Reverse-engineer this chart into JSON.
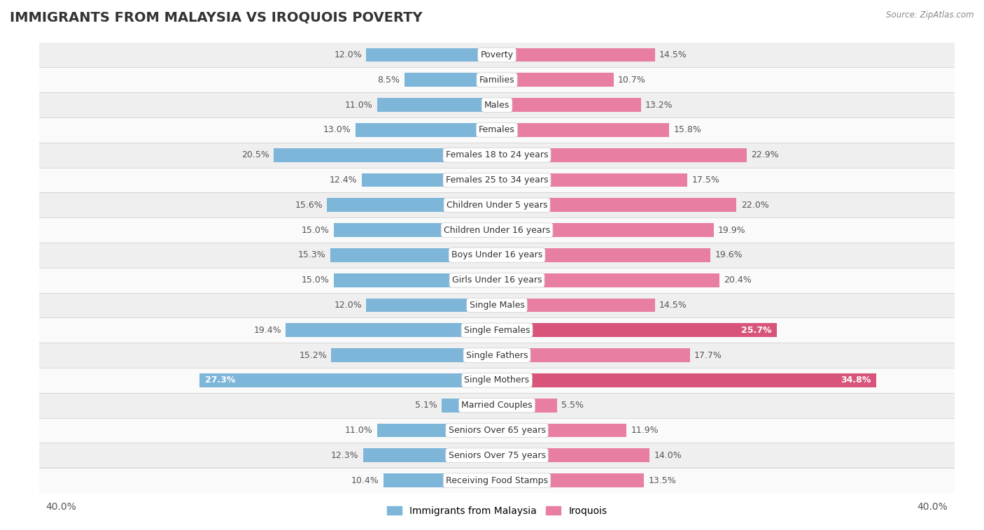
{
  "title": "IMMIGRANTS FROM MALAYSIA VS IROQUOIS POVERTY",
  "source": "Source: ZipAtlas.com",
  "categories": [
    "Poverty",
    "Families",
    "Males",
    "Females",
    "Females 18 to 24 years",
    "Females 25 to 34 years",
    "Children Under 5 years",
    "Children Under 16 years",
    "Boys Under 16 years",
    "Girls Under 16 years",
    "Single Males",
    "Single Females",
    "Single Fathers",
    "Single Mothers",
    "Married Couples",
    "Seniors Over 65 years",
    "Seniors Over 75 years",
    "Receiving Food Stamps"
  ],
  "malaysia_values": [
    12.0,
    8.5,
    11.0,
    13.0,
    20.5,
    12.4,
    15.6,
    15.0,
    15.3,
    15.0,
    12.0,
    19.4,
    15.2,
    27.3,
    5.1,
    11.0,
    12.3,
    10.4
  ],
  "iroquois_values": [
    14.5,
    10.7,
    13.2,
    15.8,
    22.9,
    17.5,
    22.0,
    19.9,
    19.6,
    20.4,
    14.5,
    25.7,
    17.7,
    34.8,
    5.5,
    11.9,
    14.0,
    13.5
  ],
  "malaysia_color": "#7eb6d9",
  "iroquois_color": "#e87fa3",
  "highlight_iroquois_color": "#d9547a",
  "background_row_odd": "#efefef",
  "background_row_even": "#fafafa",
  "bar_height": 0.55,
  "label_fontsize": 9,
  "category_fontsize": 9,
  "title_fontsize": 14,
  "legend_fontsize": 10,
  "x_max": 40.0
}
